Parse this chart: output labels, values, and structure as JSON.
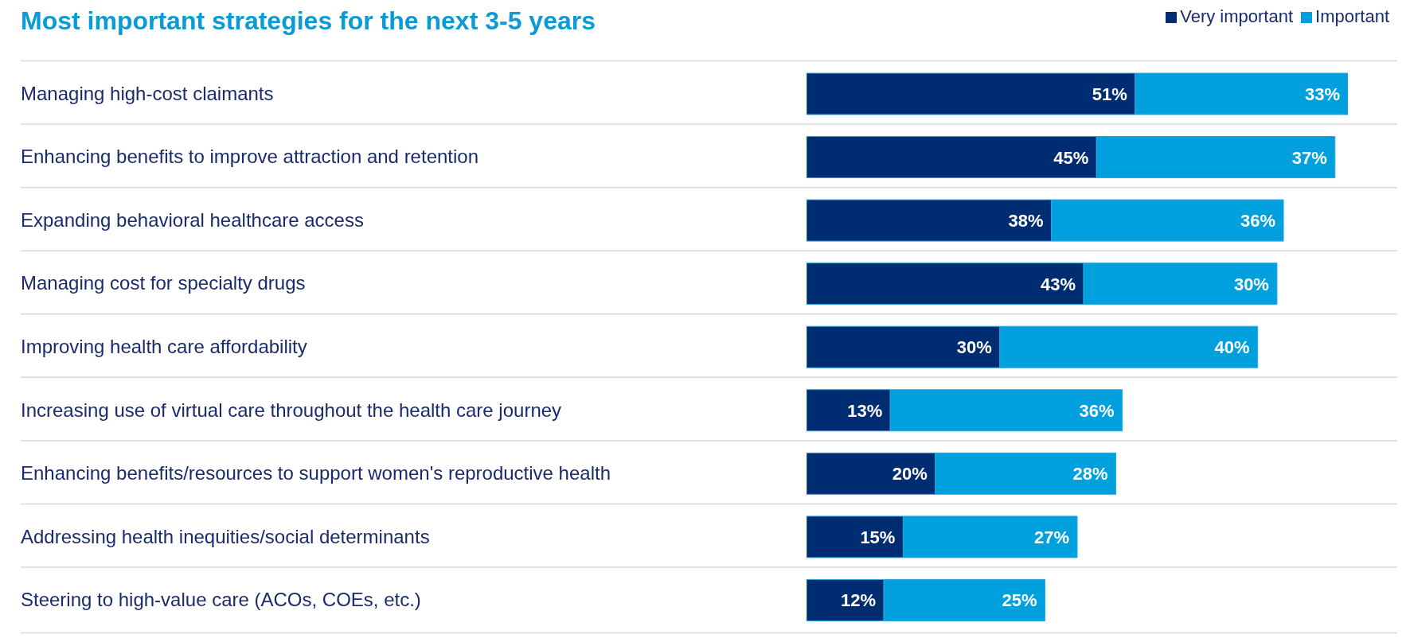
{
  "chart_data": {
    "type": "bar",
    "orientation": "horizontal",
    "stacked": true,
    "title": "Most important strategies for the next 3-5 years",
    "categories": [
      "Managing high-cost claimants",
      "Enhancing benefits to improve attraction and retention",
      "Expanding behavioral healthcare access",
      "Managing cost for specialty drugs",
      "Improving health care affordability",
      "Increasing use of virtual care throughout the health care journey",
      "Enhancing benefits/resources to support women's reproductive health",
      "Addressing health inequities/social determinants",
      "Steering to high-value care (ACOs, COEs, etc.)"
    ],
    "series": [
      {
        "name": "Very important",
        "color": "#002d72",
        "values": [
          51,
          45,
          38,
          43,
          30,
          13,
          20,
          15,
          12
        ],
        "value_labels": [
          "51%",
          "45%",
          "38%",
          "43%",
          "30%",
          "13%",
          "20%",
          "15%",
          "12%"
        ]
      },
      {
        "name": "Important",
        "color": "#00a0df",
        "values": [
          33,
          37,
          36,
          30,
          40,
          36,
          28,
          27,
          25
        ],
        "value_labels": [
          "33%",
          "37%",
          "36%",
          "30%",
          "40%",
          "36%",
          "28%",
          "27%",
          "25%"
        ]
      }
    ],
    "legend": "top right",
    "grid": "y",
    "tick_labels": "y"
  }
}
